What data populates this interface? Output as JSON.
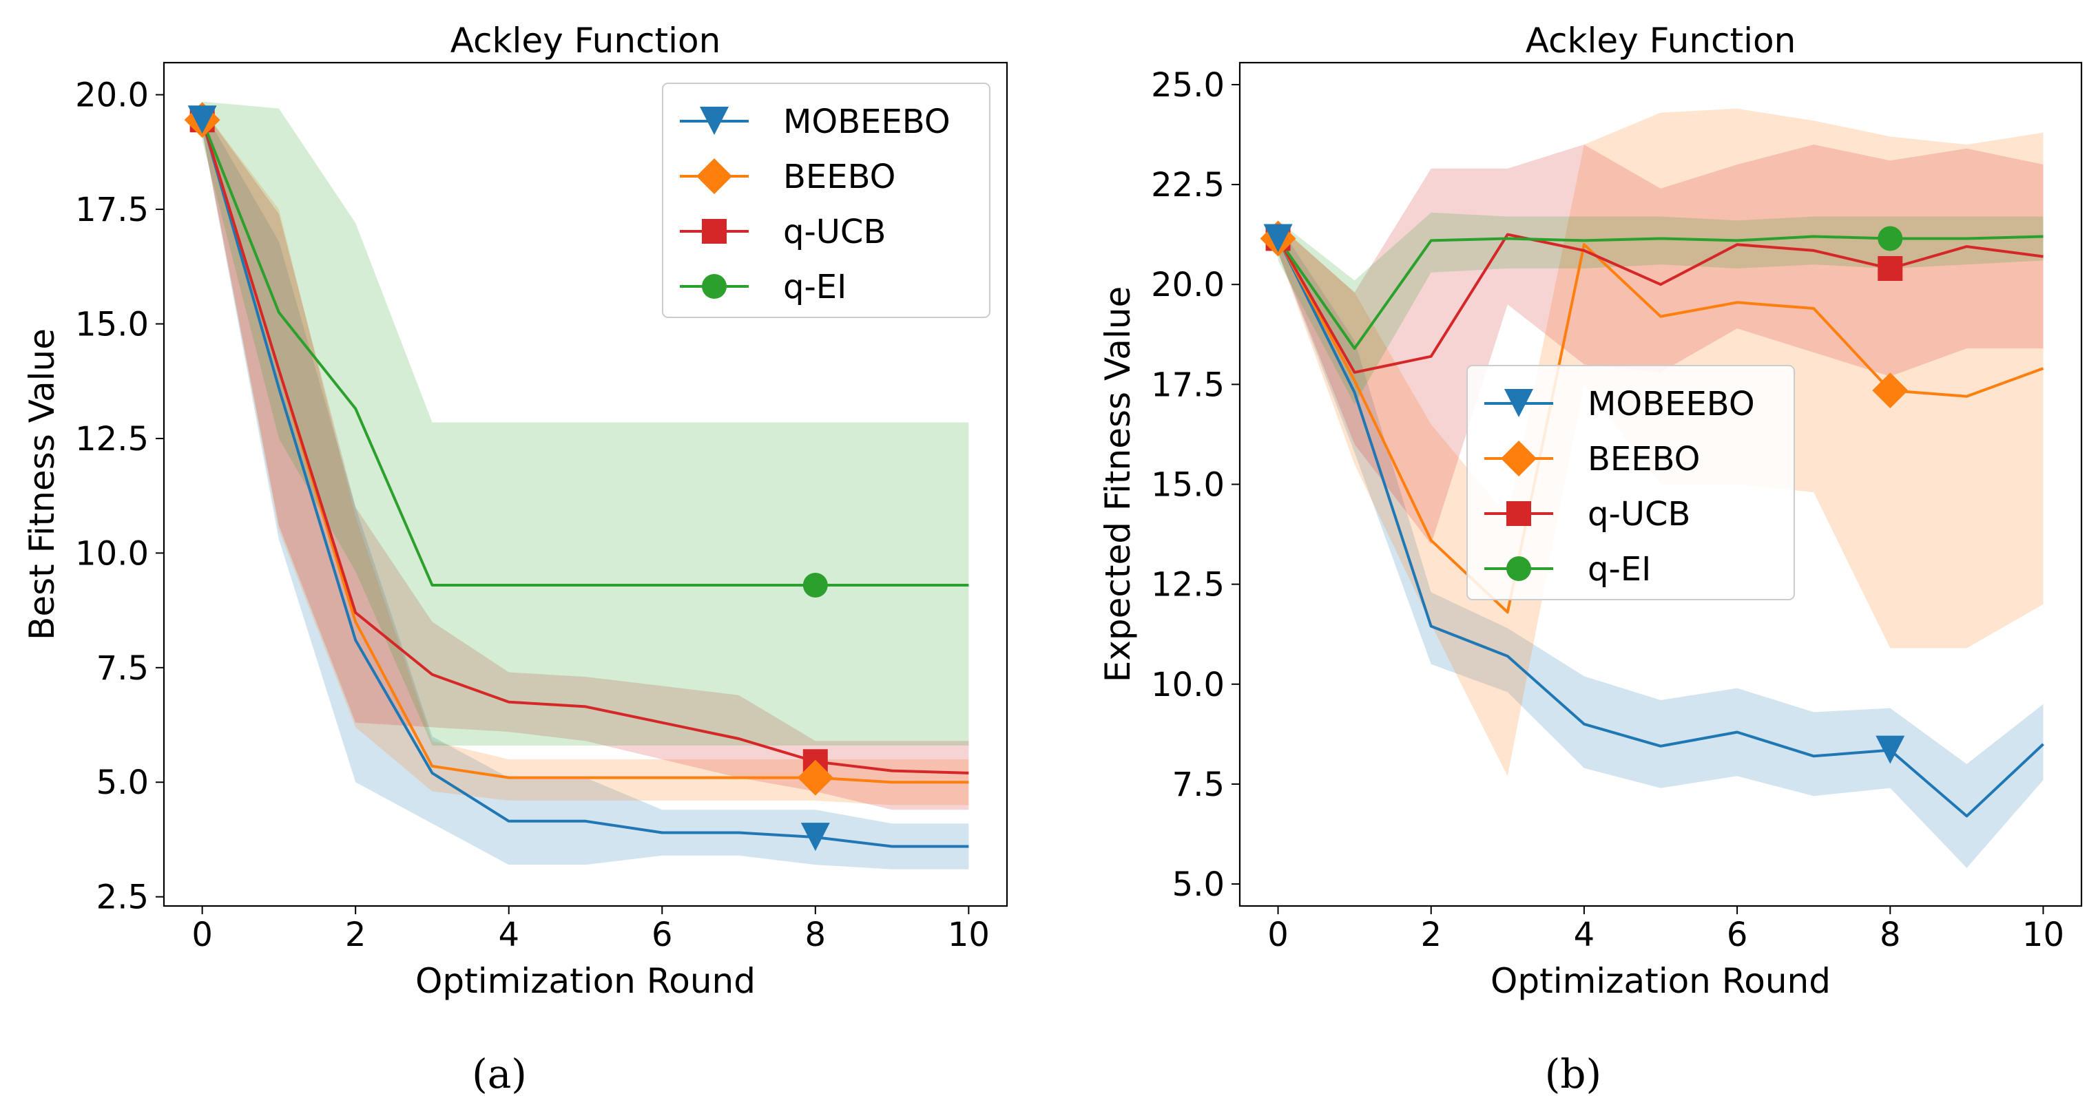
{
  "colors": {
    "MOBEEBO": "#1f77b4",
    "BEEBO": "#ff7f0e",
    "q-UCB": "#d62728",
    "q-EI": "#2ca02c"
  },
  "chart_data": [
    {
      "type": "line",
      "panel": "a",
      "caption": "(a)",
      "title": "Ackley Function",
      "xlabel": "Optimization Round",
      "ylabel": "Best Fitness Value",
      "xlim": [
        -0.5,
        10.5
      ],
      "ylim": [
        2.3,
        20.7
      ],
      "xticks": [
        0,
        2,
        4,
        6,
        8,
        10
      ],
      "xtick_labels": [
        "0",
        "2",
        "4",
        "6",
        "8",
        "10"
      ],
      "yticks": [
        2.5,
        5.0,
        7.5,
        10.0,
        12.5,
        15.0,
        17.5,
        20.0
      ],
      "ytick_labels": [
        "2.5",
        "5.0",
        "7.5",
        "10.0",
        "12.5",
        "15.0",
        "17.5",
        "20.0"
      ],
      "x": [
        0,
        1,
        2,
        3,
        4,
        5,
        6,
        7,
        8,
        9,
        10
      ],
      "marker_indices": [
        0,
        8
      ],
      "legend_position": "top-right",
      "series": [
        {
          "name": "MOBEEBO",
          "marker": "triangle-down",
          "values": [
            19.45,
            13.6,
            8.1,
            5.2,
            4.15,
            4.15,
            3.9,
            3.9,
            3.8,
            3.6,
            3.6
          ],
          "lower": [
            19.2,
            10.3,
            5.0,
            4.1,
            3.2,
            3.2,
            3.4,
            3.4,
            3.2,
            3.1,
            3.1
          ],
          "upper": [
            19.7,
            16.8,
            11.0,
            6.0,
            5.1,
            5.1,
            4.4,
            4.4,
            4.4,
            4.1,
            4.1
          ]
        },
        {
          "name": "BEEBO",
          "marker": "diamond",
          "values": [
            19.45,
            14.0,
            8.5,
            5.35,
            5.1,
            5.1,
            5.1,
            5.1,
            5.1,
            5.0,
            5.0
          ],
          "lower": [
            19.2,
            10.5,
            6.2,
            4.8,
            4.6,
            4.6,
            4.6,
            4.6,
            4.6,
            4.5,
            4.5
          ],
          "upper": [
            19.7,
            17.5,
            10.8,
            5.9,
            5.5,
            5.5,
            5.5,
            5.5,
            5.5,
            5.5,
            5.5
          ]
        },
        {
          "name": "q-UCB",
          "marker": "square",
          "values": [
            19.45,
            14.0,
            8.7,
            7.35,
            6.75,
            6.65,
            6.3,
            5.95,
            5.45,
            5.25,
            5.2
          ],
          "lower": [
            19.2,
            10.6,
            6.3,
            6.2,
            6.1,
            5.9,
            5.5,
            5.1,
            4.8,
            4.4,
            4.4
          ],
          "upper": [
            19.7,
            17.4,
            11.0,
            8.5,
            7.4,
            7.3,
            7.1,
            6.9,
            5.9,
            5.9,
            5.9
          ]
        },
        {
          "name": "q-EI",
          "marker": "circle",
          "values": [
            19.45,
            15.25,
            13.15,
            9.3,
            9.3,
            9.3,
            9.3,
            9.3,
            9.3,
            9.3,
            9.3
          ],
          "lower": [
            19.0,
            12.5,
            9.6,
            5.8,
            5.8,
            5.8,
            5.8,
            5.8,
            5.8,
            5.8,
            5.8
          ],
          "upper": [
            19.85,
            19.7,
            17.2,
            12.85,
            12.85,
            12.85,
            12.85,
            12.85,
            12.85,
            12.85,
            12.85
          ]
        }
      ]
    },
    {
      "type": "line",
      "panel": "b",
      "caption": "(b)",
      "title": "Ackley Function",
      "xlabel": "Optimization Round",
      "ylabel": "Expected Fitness Value",
      "xlim": [
        -0.5,
        10.5
      ],
      "ylim": [
        4.45,
        25.55
      ],
      "xticks": [
        0,
        2,
        4,
        6,
        8,
        10
      ],
      "xtick_labels": [
        "0",
        "2",
        "4",
        "6",
        "8",
        "10"
      ],
      "yticks": [
        5.0,
        7.5,
        10.0,
        12.5,
        15.0,
        17.5,
        20.0,
        22.5,
        25.0
      ],
      "ytick_labels": [
        "5.0",
        "7.5",
        "10.0",
        "12.5",
        "15.0",
        "17.5",
        "20.0",
        "22.5",
        "25.0"
      ],
      "x": [
        0,
        1,
        2,
        3,
        4,
        5,
        6,
        7,
        8,
        9,
        10
      ],
      "marker_indices": [
        0,
        8
      ],
      "legend_position": "center-left",
      "series": [
        {
          "name": "MOBEEBO",
          "marker": "triangle-down",
          "values": [
            21.15,
            17.3,
            11.45,
            10.7,
            9.0,
            8.45,
            8.8,
            8.2,
            8.35,
            6.7,
            8.5
          ],
          "lower": [
            20.8,
            15.8,
            10.5,
            9.8,
            7.9,
            7.4,
            7.7,
            7.2,
            7.4,
            5.4,
            7.6
          ],
          "upper": [
            21.5,
            18.6,
            12.3,
            11.4,
            10.2,
            9.6,
            9.9,
            9.3,
            9.4,
            8.0,
            9.5
          ]
        },
        {
          "name": "BEEBO",
          "marker": "diamond",
          "values": [
            21.15,
            17.6,
            13.6,
            11.8,
            21.0,
            19.2,
            19.55,
            19.4,
            17.35,
            17.2,
            17.9
          ],
          "lower": [
            20.8,
            15.5,
            11.5,
            7.7,
            17.5,
            15.0,
            15.0,
            14.8,
            10.9,
            10.9,
            12.0
          ],
          "upper": [
            21.5,
            19.8,
            16.5,
            14.2,
            23.5,
            24.3,
            24.4,
            24.1,
            23.7,
            23.5,
            23.8
          ]
        },
        {
          "name": "q-UCB",
          "marker": "square",
          "values": [
            21.15,
            17.8,
            18.2,
            21.25,
            20.85,
            20.0,
            21.0,
            20.85,
            20.4,
            20.95,
            20.7
          ],
          "lower": [
            20.8,
            16.0,
            13.5,
            19.5,
            18.0,
            17.8,
            18.9,
            18.3,
            17.7,
            18.4,
            18.4
          ],
          "upper": [
            21.5,
            19.8,
            22.9,
            22.9,
            23.5,
            22.4,
            23.0,
            23.5,
            23.1,
            23.4,
            23.0
          ]
        },
        {
          "name": "q-EI",
          "marker": "circle",
          "values": [
            21.15,
            18.4,
            21.1,
            21.15,
            21.1,
            21.15,
            21.1,
            21.2,
            21.15,
            21.15,
            21.2
          ],
          "lower": [
            20.6,
            17.0,
            20.3,
            20.4,
            20.4,
            20.5,
            20.4,
            20.5,
            20.4,
            20.5,
            20.6
          ],
          "upper": [
            21.6,
            20.1,
            21.8,
            21.7,
            21.7,
            21.7,
            21.6,
            21.7,
            21.7,
            21.7,
            21.7
          ]
        }
      ]
    }
  ]
}
